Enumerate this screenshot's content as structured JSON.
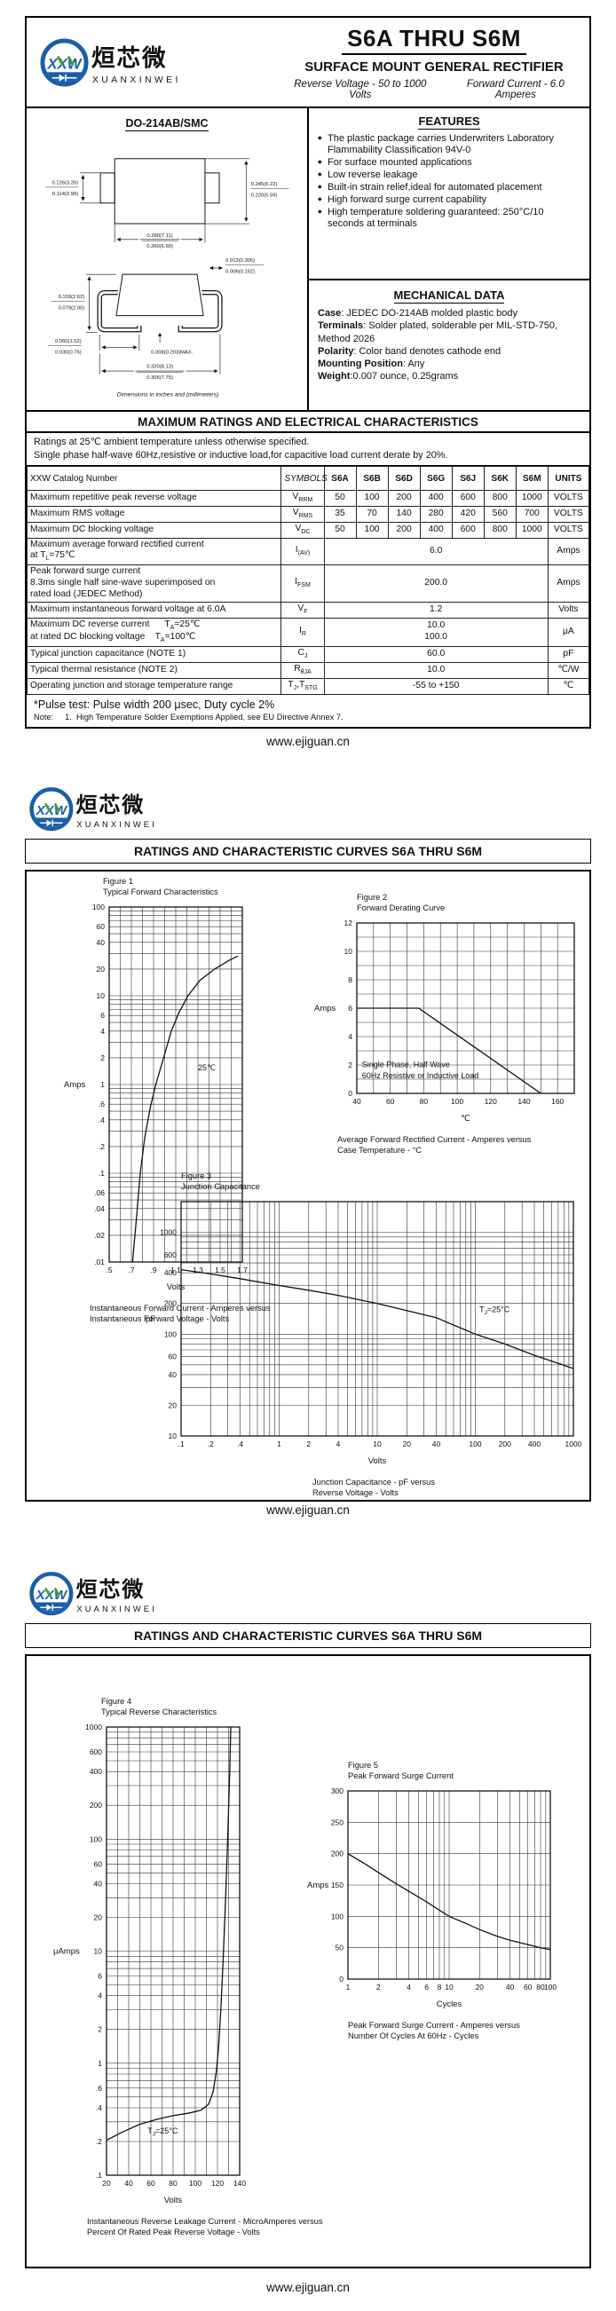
{
  "brand": {
    "monogram": "XXW",
    "name_cn": "烜芯微",
    "name_en": "XUANXINWEI",
    "blue": "#1b5ea8",
    "green": "#3fa335"
  },
  "footer_url": "www.ejiguan.cn",
  "page1": {
    "title": "S6A THRU S6M",
    "subtitle": "SURFACE MOUNT GENERAL RECTIFIER",
    "tagline_rv": "Reverse Voltage - 50 to 1000 Volts",
    "tagline_fc": "Forward Current - 6.0 Amperes",
    "package": {
      "heading": "DO-214AB/SMC",
      "note": "Dimensions in inches and (millimeters)",
      "dims": {
        "tab_h": [
          "0.126(3.20)",
          "0.114(2.90)"
        ],
        "body_h": [
          "0.245(6.22)",
          "0.220(5.59)"
        ],
        "body_w": [
          "0.280(7.11)",
          "0.260(6.60)"
        ],
        "prof_h": [
          "0.103(2.62)",
          "0.079(2.00)"
        ],
        "lead_l": [
          "0.060(1.52)",
          "0.030(0.76)"
        ],
        "lead_t": [
          "0.012(0.305)",
          "0.006(0.152)"
        ],
        "standoff": "0.008(0.203)MAX.",
        "overall_w": [
          "0.320(8.13)",
          "0.305(7.75)"
        ]
      }
    },
    "features": {
      "heading": "FEATURES",
      "items": [
        "The plastic package carries Underwriters Laboratory Flammability Classification 94V-0",
        "For surface mounted applications",
        "Low reverse leakage",
        "Built-in strain relief,ideal for automated placement",
        "High forward surge current capability",
        "High temperature soldering guaranteed: 250°C/10 seconds at terminals"
      ]
    },
    "mechanical": {
      "heading": "MECHANICAL DATA",
      "items": [
        {
          "label": "Case",
          "text": ": JEDEC DO-214AB molded plastic body"
        },
        {
          "label": "Terminals",
          "text": ": Solder plated, solderable per MIL-STD-750, Method 2026"
        },
        {
          "label": "Polarity",
          "text": ": Color band denotes cathode end"
        },
        {
          "label": "Mounting Position",
          "text": ": Any"
        },
        {
          "label": "Weight",
          "text": ":0.007 ounce, 0.25grams"
        }
      ]
    },
    "ratings": {
      "heading": "MAXIMUM RATINGS AND ELECTRICAL CHARACTERISTICS",
      "conditions": [
        "Ratings at 25℃ ambient temperature unless otherwise specified.",
        "Single phase half-wave 60Hz,resistive or inductive load,for capacitive load current derate by 20%."
      ],
      "header": {
        "catalog": "XXW Catalog  Number",
        "symbols": "SYMBOLS",
        "parts": [
          "S6A",
          "S6B",
          "S6D",
          "S6G",
          "S6J",
          "S6K",
          "S6M"
        ],
        "units": "UNITS"
      },
      "rows": [
        {
          "label": [
            "Maximum repetitive peak reverse voltage"
          ],
          "sym": "V{RRM}",
          "values": [
            "50",
            "100",
            "200",
            "400",
            "600",
            "800",
            "1000"
          ],
          "unit": "VOLTS"
        },
        {
          "label": [
            "Maximum RMS voltage"
          ],
          "sym": "V{RMS}",
          "values": [
            "35",
            "70",
            "140",
            "280",
            "420",
            "560",
            "700"
          ],
          "unit": "VOLTS"
        },
        {
          "label": [
            "Maximum DC blocking voltage"
          ],
          "sym": "V{DC}",
          "values": [
            "50",
            "100",
            "200",
            "400",
            "600",
            "800",
            "1000"
          ],
          "unit": "VOLTS"
        },
        {
          "label": [
            "Maximum average forward rectified current",
            "at T{L}=75℃"
          ],
          "sym": "I{(AV)}",
          "span": [
            "6.0"
          ],
          "unit": "Amps"
        },
        {
          "label": [
            "Peak forward surge current",
            "8.3ms single half sine-wave superimposed on",
            "rated load (JEDEC Method)"
          ],
          "sym": "I{FSM}",
          "span": [
            "200.0"
          ],
          "unit": "Amps"
        },
        {
          "label": [
            "Maximum instantaneous forward voltage at 6.0A"
          ],
          "sym": "V{F}",
          "span": [
            "1.2"
          ],
          "unit": "Volts"
        },
        {
          "label": [
            "Maximum DC reverse current      T{A}=25℃",
            "at rated DC blocking voltage    T{A}=100℃"
          ],
          "sym": "I{R}",
          "span": [
            "10.0",
            "100.0"
          ],
          "unit": "μA"
        },
        {
          "label": [
            "Typical junction capacitance (NOTE 1)"
          ],
          "sym": "C{J}",
          "span": [
            "60.0"
          ],
          "unit": "pF"
        },
        {
          "label": [
            "Typical thermal resistance (NOTE 2)"
          ],
          "sym": "R{θJA}",
          "span": [
            "10.0"
          ],
          "unit": "℃/W"
        },
        {
          "label": [
            "Operating junction and storage temperature range"
          ],
          "sym": "T{J},T{STG}",
          "span": [
            "-55 to +150"
          ],
          "unit": "℃"
        }
      ],
      "pulse_note": "*Pulse test: Pulse width 200 μsec, Duty cycle 2%",
      "note": "Note:     1.  High Temperature Solder Exemptions Applied, see EU Directive Annex 7."
    }
  },
  "curves_banner": "RATINGS AND CHARACTERISTIC CURVES S6A THRU S6M",
  "chart_data": [
    {
      "type": "line",
      "title": [
        "Figure 1",
        "Typical Forward Characteristics"
      ],
      "x": {
        "scale": "linear",
        "min": 0.5,
        "max": 1.7,
        "grid_step": 0.1,
        "unit": "Volts",
        "ticks": [
          [
            0.5,
            ".5"
          ],
          [
            0.7,
            ".7"
          ],
          [
            0.9,
            ".9"
          ],
          [
            1.1,
            "1.1"
          ],
          [
            1.3,
            "1.3"
          ],
          [
            1.5,
            "1.5"
          ],
          [
            1.7,
            "1.7"
          ]
        ]
      },
      "y": {
        "scale": "log",
        "min": 0.01,
        "max": 100,
        "unit": "Amps",
        "ticks": [
          [
            100,
            "100"
          ],
          [
            60,
            "60"
          ],
          [
            40,
            "40"
          ],
          [
            20,
            "20"
          ],
          [
            10,
            "10"
          ],
          [
            6,
            "6"
          ],
          [
            4,
            "4"
          ],
          [
            2,
            "2"
          ],
          [
            1,
            "1"
          ],
          [
            0.6,
            ".6"
          ],
          [
            0.4,
            ".4"
          ],
          [
            0.2,
            ".2"
          ],
          [
            0.1,
            ".1"
          ],
          [
            0.06,
            ".06"
          ],
          [
            0.04,
            ".04"
          ],
          [
            0.02,
            ".02"
          ],
          [
            0.01,
            ".01"
          ]
        ]
      },
      "series": [
        {
          "name": "25℃",
          "points": [
            [
              0.71,
              0.01
            ],
            [
              0.745,
              0.03
            ],
            [
              0.78,
              0.1
            ],
            [
              0.82,
              0.25
            ],
            [
              0.87,
              0.55
            ],
            [
              0.92,
              1
            ],
            [
              0.99,
              2
            ],
            [
              1.06,
              4
            ],
            [
              1.13,
              6.5
            ],
            [
              1.21,
              10
            ],
            [
              1.32,
              15
            ],
            [
              1.45,
              20
            ],
            [
              1.58,
              25
            ],
            [
              1.66,
              28
            ]
          ]
        }
      ],
      "annotations": [
        {
          "x": 1.3,
          "y": 1.45,
          "text": "25℃"
        }
      ],
      "caption": [
        "Instantaneous Forward Current - Amperes versus",
        "Instantaneous Forward Voltage - Volts"
      ]
    },
    {
      "type": "line",
      "title": [
        "Figure 2",
        "Forward Derating Curve"
      ],
      "x": {
        "scale": "linear",
        "min": 40,
        "max": 170,
        "grid_step": 10,
        "unit": "℃",
        "ticks": [
          [
            40,
            "40"
          ],
          [
            60,
            "60"
          ],
          [
            80,
            "80"
          ],
          [
            100,
            "100"
          ],
          [
            120,
            "120"
          ],
          [
            140,
            "140"
          ],
          [
            160,
            "160"
          ]
        ]
      },
      "y": {
        "scale": "linear",
        "min": 0,
        "max": 12,
        "grid_step": 1,
        "unit": "Amps",
        "ticks": [
          [
            0,
            "0"
          ],
          [
            2,
            "2"
          ],
          [
            4,
            "4"
          ],
          [
            6,
            "6"
          ],
          [
            8,
            "8"
          ],
          [
            10,
            "10"
          ],
          [
            12,
            "12"
          ]
        ]
      },
      "series": [
        {
          "name": "derating",
          "points": [
            [
              40,
              6
            ],
            [
              77,
              6
            ],
            [
              150,
              0
            ]
          ]
        }
      ],
      "annotations": [
        {
          "x": 43,
          "y": 1.85,
          "text": "Single Phase, Half Wave"
        },
        {
          "x": 43,
          "y": 1.05,
          "text": "60Hz Resistive or Inductive Load"
        }
      ],
      "caption": [
        "Average Forward Rectified Current  -  Amperes versus",
        "Case Temperature  - °C"
      ]
    },
    {
      "type": "line",
      "title": [
        "Figure 3",
        "Junction Capacitance"
      ],
      "x": {
        "scale": "log",
        "min": 0.1,
        "max": 1000,
        "unit": "Volts",
        "ticks": [
          [
            0.1,
            ".1"
          ],
          [
            0.2,
            ".2"
          ],
          [
            0.4,
            ".4"
          ],
          [
            1,
            "1"
          ],
          [
            2,
            "2"
          ],
          [
            4,
            "4"
          ],
          [
            10,
            "10"
          ],
          [
            20,
            "20"
          ],
          [
            40,
            "40"
          ],
          [
            100,
            "100"
          ],
          [
            200,
            "200"
          ],
          [
            400,
            "400"
          ],
          [
            1000,
            "1000"
          ]
        ]
      },
      "y": {
        "scale": "log",
        "min": 10,
        "max": 2000,
        "unit": "pF",
        "ticks": [
          [
            1000,
            "1000"
          ],
          [
            600,
            "600"
          ],
          [
            400,
            "400"
          ],
          [
            200,
            "200"
          ],
          [
            100,
            "100"
          ],
          [
            60,
            "60"
          ],
          [
            40,
            "40"
          ],
          [
            20,
            "20"
          ],
          [
            10,
            "10"
          ]
        ]
      },
      "series": [
        {
          "name": "TJ=25°C",
          "points": [
            [
              0.1,
              430
            ],
            [
              0.2,
              390
            ],
            [
              0.4,
              350
            ],
            [
              1,
              300
            ],
            [
              2,
              270
            ],
            [
              4,
              240
            ],
            [
              10,
              200
            ],
            [
              20,
              170
            ],
            [
              40,
              145
            ],
            [
              100,
              100
            ],
            [
              200,
              80
            ],
            [
              400,
              62
            ],
            [
              1000,
              46
            ]
          ]
        }
      ],
      "annotations": [
        {
          "x": 110,
          "y": 165,
          "text": "T{J}=25°C"
        }
      ],
      "caption": [
        "Junction Capacitance - pF versus",
        "Reverse Voltage - Volts"
      ]
    },
    {
      "type": "line",
      "title": [
        "Figure 4",
        "Typical Reverse Characteristics"
      ],
      "x": {
        "scale": "linear",
        "min": 20,
        "max": 140,
        "grid_step": 10,
        "unit": "Volts",
        "ticks": [
          [
            20,
            "20"
          ],
          [
            40,
            "40"
          ],
          [
            60,
            "60"
          ],
          [
            80,
            "80"
          ],
          [
            100,
            "100"
          ],
          [
            120,
            "120"
          ],
          [
            140,
            "140"
          ]
        ]
      },
      "y": {
        "scale": "log",
        "min": 0.1,
        "max": 1000,
        "unit": "μAmps",
        "ticks": [
          [
            1000,
            "1000"
          ],
          [
            600,
            "600"
          ],
          [
            400,
            "400"
          ],
          [
            200,
            "200"
          ],
          [
            100,
            "100"
          ],
          [
            60,
            "60"
          ],
          [
            40,
            "40"
          ],
          [
            20,
            "20"
          ],
          [
            10,
            "10"
          ],
          [
            6,
            "6"
          ],
          [
            4,
            "4"
          ],
          [
            2,
            "2"
          ],
          [
            1,
            "1"
          ],
          [
            0.6,
            ".6"
          ],
          [
            0.4,
            ".4"
          ],
          [
            0.2,
            ".2"
          ],
          [
            0.1,
            ".1"
          ]
        ]
      },
      "series": [
        {
          "name": "TJ=25°C",
          "points": [
            [
              20,
              0.205
            ],
            [
              35,
              0.245
            ],
            [
              50,
              0.285
            ],
            [
              65,
              0.315
            ],
            [
              80,
              0.34
            ],
            [
              95,
              0.36
            ],
            [
              105,
              0.38
            ],
            [
              112,
              0.43
            ],
            [
              116,
              0.55
            ],
            [
              119,
              0.85
            ],
            [
              121,
              1.4
            ],
            [
              123,
              3
            ],
            [
              125,
              8
            ],
            [
              127,
              25
            ],
            [
              129,
              90
            ],
            [
              131,
              400
            ],
            [
              132,
              1000
            ]
          ]
        }
      ],
      "annotations": [
        {
          "x": 57,
          "y": 0.235,
          "text": "T{J}=25°C"
        }
      ],
      "caption": [
        "Instantaneous Reverse Leakage Current - MicroAmperes versus",
        "Percent Of Rated Peak Reverse Voltage - Volts"
      ]
    },
    {
      "type": "line",
      "title": [
        "Figure 5",
        "Peak Forward Surge Current"
      ],
      "x": {
        "scale": "log",
        "min": 1,
        "max": 100,
        "unit": "Cycles",
        "ticks": [
          [
            1,
            "1"
          ],
          [
            2,
            "2"
          ],
          [
            4,
            "4"
          ],
          [
            6,
            "6"
          ],
          [
            8,
            "8"
          ],
          [
            10,
            "10"
          ],
          [
            20,
            "20"
          ],
          [
            40,
            "40"
          ],
          [
            60,
            "60"
          ],
          [
            80,
            "80"
          ],
          [
            100,
            "100"
          ]
        ]
      },
      "y": {
        "scale": "linear",
        "min": 0,
        "max": 300,
        "grid_step": 50,
        "unit": "Amps",
        "ticks": [
          [
            0,
            "0"
          ],
          [
            50,
            "50"
          ],
          [
            100,
            "100"
          ],
          [
            150,
            "150"
          ],
          [
            200,
            "200"
          ],
          [
            250,
            "250"
          ],
          [
            300,
            "300"
          ]
        ]
      },
      "series": [
        {
          "name": "surge",
          "points": [
            [
              1,
              200
            ],
            [
              1.5,
              183
            ],
            [
              2,
              170
            ],
            [
              3,
              152
            ],
            [
              4,
              140
            ],
            [
              6,
              123
            ],
            [
              8,
              110
            ],
            [
              10,
              100
            ],
            [
              15,
              88
            ],
            [
              20,
              79
            ],
            [
              30,
              68
            ],
            [
              40,
              62
            ],
            [
              60,
              55
            ],
            [
              80,
              50
            ],
            [
              100,
              47
            ]
          ]
        }
      ],
      "annotations": [],
      "caption": [
        "Peak Forward Surge Current - Amperes versus",
        "Number Of Cycles At 60Hz - Cycles"
      ]
    }
  ]
}
